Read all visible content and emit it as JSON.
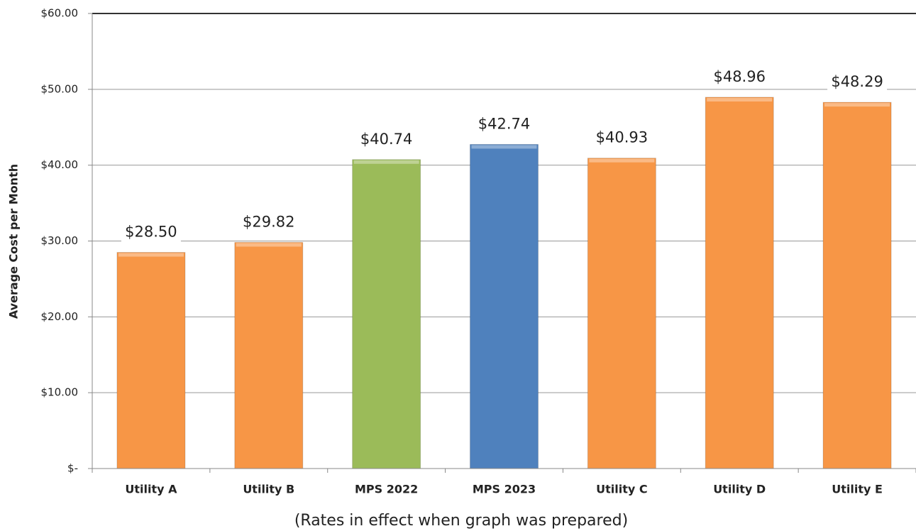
{
  "chart_data": {
    "type": "bar",
    "y_label": "Average Cost per Month",
    "x_label": "(Rates in effect when graph was prepared)",
    "categories": [
      "Utility A",
      "Utility B",
      "MPS 2022",
      "MPS 2023",
      "Utility C",
      "Utility D",
      "Utility E"
    ],
    "values": [
      28.5,
      29.82,
      40.74,
      42.74,
      40.93,
      48.96,
      48.29
    ],
    "value_labels": [
      "$28.50",
      "$29.82",
      "$40.74",
      "$42.74",
      "$40.93",
      "$48.96",
      "$48.29"
    ],
    "colors": [
      "#f79646",
      "#f79646",
      "#9bbb59",
      "#4f81bd",
      "#f79646",
      "#f79646",
      "#f79646"
    ],
    "ylim": [
      0,
      60
    ],
    "yticks": [
      {
        "value": 0,
        "label": "$-"
      },
      {
        "value": 10,
        "label": "$10.00"
      },
      {
        "value": 20,
        "label": "$20.00"
      },
      {
        "value": 30,
        "label": "$30.00"
      },
      {
        "value": 40,
        "label": "$40.00"
      },
      {
        "value": 50,
        "label": "$50.00"
      },
      {
        "value": 60,
        "label": "$60.00"
      }
    ],
    "grid": true
  }
}
